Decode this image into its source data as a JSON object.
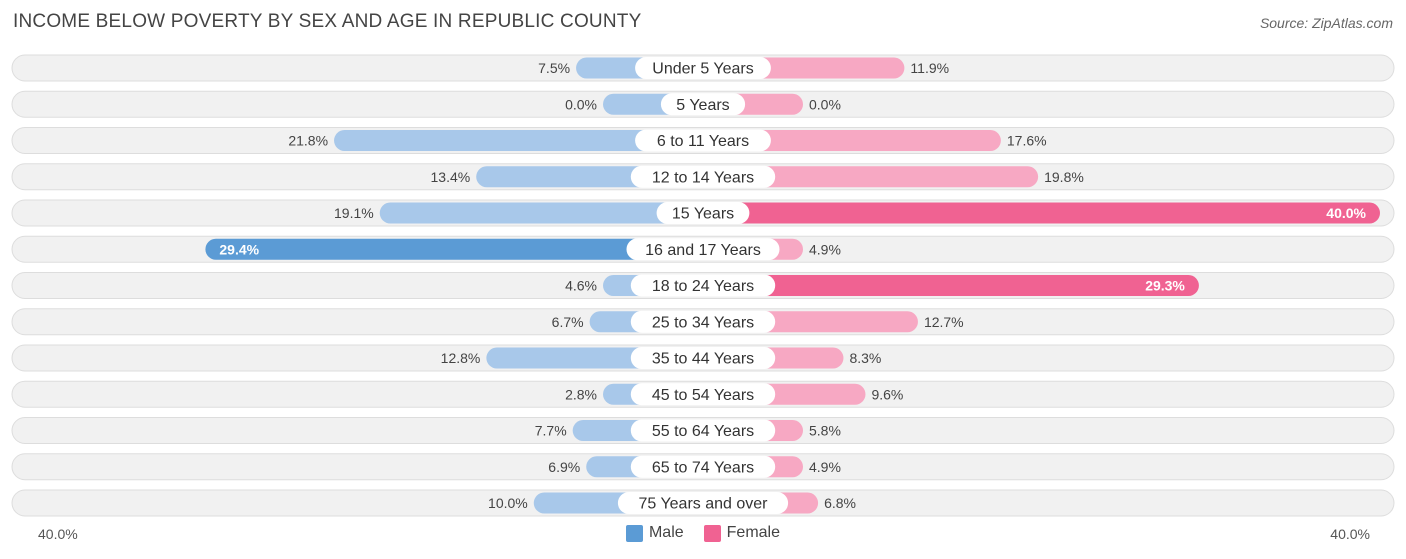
{
  "title": "INCOME BELOW POVERTY BY SEX AND AGE IN REPUBLIC COUNTY",
  "source": "Source: ZipAtlas.com",
  "colors": {
    "male": "#5b9bd5",
    "male_light": "#a8c8ea",
    "female": "#f06292",
    "female_light": "#f7a8c3",
    "row_bg": "#f1f1f1",
    "row_border": "#dddddd"
  },
  "axis": {
    "left_label": "40.0%",
    "right_label": "40.0%"
  },
  "legend": {
    "male": "Male",
    "female": "Female"
  },
  "chart_data": {
    "type": "bar",
    "orientation": "horizontal-diverging",
    "title": "INCOME BELOW POVERTY BY SEX AND AGE IN REPUBLIC COUNTY",
    "categories": [
      "Under 5 Years",
      "5 Years",
      "6 to 11 Years",
      "12 to 14 Years",
      "15 Years",
      "16 and 17 Years",
      "18 to 24 Years",
      "25 to 34 Years",
      "35 to 44 Years",
      "45 to 54 Years",
      "55 to 64 Years",
      "65 to 74 Years",
      "75 Years and over"
    ],
    "series": [
      {
        "name": "Male",
        "values": [
          7.5,
          0.0,
          21.8,
          13.4,
          19.1,
          29.4,
          4.6,
          6.7,
          12.8,
          2.8,
          7.7,
          6.9,
          10.0
        ],
        "labels": [
          "7.5%",
          "0.0%",
          "21.8%",
          "13.4%",
          "19.1%",
          "29.4%",
          "4.6%",
          "6.7%",
          "12.8%",
          "2.8%",
          "7.7%",
          "6.9%",
          "10.0%"
        ]
      },
      {
        "name": "Female",
        "values": [
          11.9,
          0.0,
          17.6,
          19.8,
          40.0,
          4.9,
          29.3,
          12.7,
          8.3,
          9.6,
          5.8,
          4.9,
          6.8
        ],
        "labels": [
          "11.9%",
          "0.0%",
          "17.6%",
          "19.8%",
          "40.0%",
          "4.9%",
          "29.3%",
          "12.7%",
          "8.3%",
          "9.6%",
          "5.8%",
          "4.9%",
          "6.8%"
        ]
      }
    ],
    "xlim": [
      -40,
      40
    ],
    "xlabel": "",
    "ylabel": ""
  }
}
